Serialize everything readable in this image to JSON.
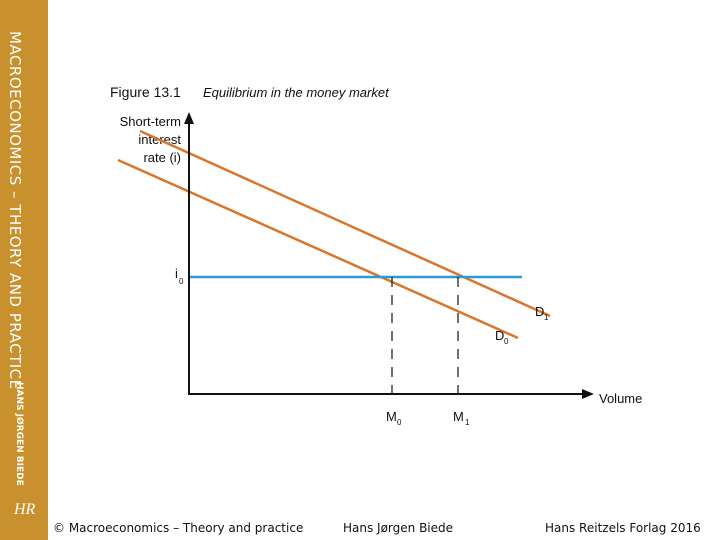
{
  "sidebar": {
    "title": "MACROECONOMICS – THEORY AND PRACTICE",
    "author": "HANS JØRGEN BIEDE",
    "logo": "HR"
  },
  "figure": {
    "number": "Figure 13.1",
    "caption": "Equilibrium in the money market",
    "y_axis_label_lines": [
      "Short-term",
      "interest",
      "rate (i)"
    ],
    "x_axis_label": "Volume",
    "i_label": "i",
    "i_sub": "0",
    "d1_label": "D",
    "d1_sub": "1",
    "d0_label": "D",
    "d0_sub": "0",
    "m0_label": "M",
    "m0_sub": "0",
    "m1_label": "M",
    "m1_sub": "1",
    "colors": {
      "demand": "#d9752d",
      "rate": "#2b9bd3",
      "axis": "#111111"
    }
  },
  "footer": {
    "left": "© Macroeconomics – Theory and practice",
    "center": "Hans Jørgen Biede",
    "right": "Hans Reitzels Forlag 2016"
  }
}
